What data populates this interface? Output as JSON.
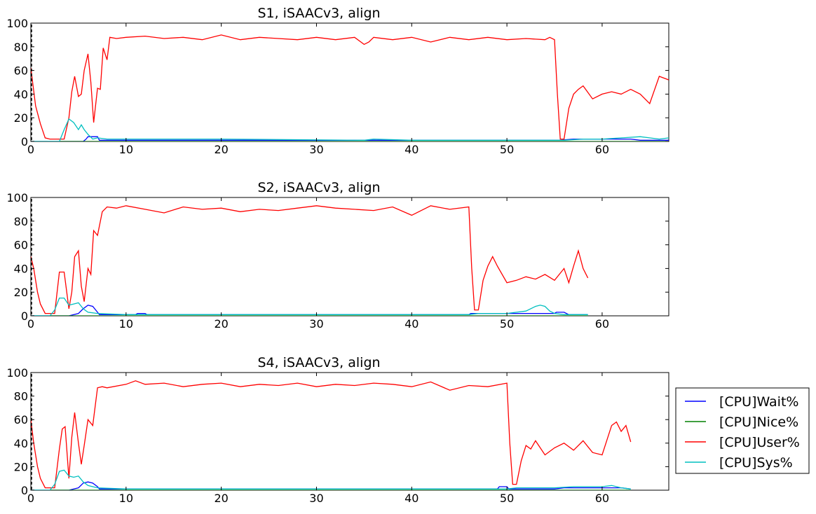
{
  "chart_data": [
    {
      "type": "line",
      "title": "S1, iSAACv3, align",
      "xlim": [
        0,
        67
      ],
      "ylim": [
        0,
        100
      ],
      "xticks": [
        "0",
        "10",
        "20",
        "30",
        "40",
        "50",
        "60"
      ],
      "yticks": [
        "0",
        "20",
        "40",
        "60",
        "80",
        "100"
      ],
      "series": [
        {
          "name": "[CPU]Wait%",
          "color": "#0000ff",
          "x": [
            0,
            4,
            5.5,
            5.8,
            6,
            7,
            7.2,
            35,
            35.2,
            36,
            36.5,
            55,
            55.5,
            57,
            58,
            60,
            62,
            63,
            64,
            65,
            66,
            67
          ],
          "y": [
            0,
            0,
            0,
            2,
            4,
            4,
            1,
            1,
            1,
            1,
            1,
            1,
            1,
            2,
            2,
            2,
            2,
            2,
            1,
            1,
            1,
            1
          ]
        },
        {
          "name": "[CPU]Nice%",
          "color": "#008000",
          "x": [
            0,
            67
          ],
          "y": [
            0,
            0
          ]
        },
        {
          "name": "[CPU]User%",
          "color": "#ff0000",
          "x": [
            0,
            0.5,
            1,
            1.5,
            2,
            2.5,
            3,
            3.5,
            4,
            4.3,
            4.6,
            5,
            5.3,
            5.6,
            6,
            6.3,
            6.6,
            7,
            7.3,
            7.6,
            8,
            8.3,
            9,
            10,
            12,
            14,
            16,
            18,
            20,
            22,
            24,
            26,
            28,
            30,
            32,
            34,
            35,
            35.5,
            36,
            38,
            40,
            42,
            44,
            46,
            48,
            50,
            52,
            54,
            54.5,
            55,
            55.3,
            55.6,
            56,
            56.5,
            57,
            57.5,
            58,
            59,
            60,
            61,
            62,
            63,
            64,
            65,
            66,
            67
          ],
          "y": [
            62,
            30,
            15,
            3,
            2,
            2,
            2,
            2,
            20,
            42,
            55,
            38,
            40,
            60,
            74,
            50,
            16,
            45,
            44,
            79,
            69,
            88,
            87,
            88,
            89,
            87,
            88,
            86,
            90,
            86,
            88,
            87,
            86,
            88,
            86,
            88,
            82,
            84,
            88,
            86,
            88,
            84,
            88,
            86,
            88,
            86,
            87,
            86,
            88,
            86,
            40,
            2,
            2,
            28,
            40,
            44,
            47,
            36,
            40,
            42,
            40,
            44,
            40,
            32,
            55,
            52
          ]
        },
        {
          "name": "[CPU]Sys%",
          "color": "#00bfbf",
          "x": [
            0,
            3,
            3.5,
            4,
            4.5,
            5,
            5.3,
            5.6,
            6,
            6.5,
            7,
            8,
            20,
            35,
            36,
            40,
            56,
            58,
            60,
            62,
            64,
            65,
            66,
            67
          ],
          "y": [
            0,
            0,
            10,
            19,
            16,
            10,
            14,
            10,
            6,
            2,
            3,
            2,
            2,
            1,
            2,
            1,
            1,
            2,
            2,
            3,
            4,
            3,
            2,
            3
          ]
        }
      ]
    },
    {
      "type": "line",
      "title": "S2, iSAACv3, align",
      "xlim": [
        0,
        67
      ],
      "ylim": [
        0,
        100
      ],
      "xticks": [
        "0",
        "10",
        "20",
        "30",
        "40",
        "50",
        "60"
      ],
      "yticks": [
        "0",
        "20",
        "40",
        "60",
        "80",
        "100"
      ],
      "series": [
        {
          "name": "[CPU]Wait%",
          "color": "#0000ff",
          "x": [
            0,
            4,
            5,
            5.5,
            6,
            6.5,
            7,
            7.2,
            11,
            11.2,
            12,
            12.2,
            46,
            46.2,
            47,
            55,
            55.2,
            56,
            56.5,
            58.5
          ],
          "y": [
            0,
            0,
            2,
            6,
            9,
            8,
            3,
            1,
            1,
            2,
            2,
            1,
            1,
            2,
            2,
            2,
            3,
            3,
            1,
            1
          ]
        },
        {
          "name": "[CPU]Nice%",
          "color": "#008000",
          "x": [
            0,
            58.5
          ],
          "y": [
            0,
            0
          ]
        },
        {
          "name": "[CPU]User%",
          "color": "#ff0000",
          "x": [
            0,
            0.3,
            0.7,
            1,
            1.5,
            2,
            2.5,
            3,
            3.5,
            4,
            4.3,
            4.6,
            5,
            5.3,
            5.6,
            6,
            6.3,
            6.6,
            7,
            7.5,
            8,
            9,
            10,
            12,
            14,
            16,
            18,
            20,
            22,
            24,
            26,
            28,
            30,
            32,
            34,
            36,
            38,
            40,
            42,
            44,
            46,
            46.3,
            46.6,
            47,
            47.5,
            48,
            48.5,
            49,
            50,
            51,
            52,
            53,
            54,
            55,
            56,
            56.5,
            57,
            57.5,
            58,
            58.5
          ],
          "y": [
            50,
            40,
            20,
            10,
            2,
            2,
            2,
            37,
            37,
            6,
            20,
            50,
            55,
            25,
            12,
            40,
            35,
            72,
            68,
            88,
            92,
            91,
            93,
            90,
            87,
            92,
            90,
            91,
            88,
            90,
            89,
            91,
            93,
            91,
            90,
            89,
            92,
            85,
            93,
            90,
            92,
            40,
            5,
            5,
            30,
            42,
            50,
            42,
            28,
            30,
            33,
            31,
            35,
            30,
            40,
            28,
            42,
            55,
            40,
            32
          ]
        },
        {
          "name": "[CPU]Sys%",
          "color": "#00bfbf",
          "x": [
            0,
            2,
            2.5,
            3,
            3.5,
            4,
            4.5,
            5,
            5.5,
            6,
            7,
            10,
            20,
            30,
            40,
            46,
            47,
            48,
            50,
            51,
            52,
            53,
            53.5,
            54,
            54.5,
            55,
            56,
            58.5
          ],
          "y": [
            0,
            0,
            5,
            15,
            15,
            9,
            10,
            11,
            6,
            3,
            2,
            1,
            1,
            1,
            1,
            1,
            2,
            2,
            2,
            3,
            4,
            8,
            9,
            8,
            4,
            2,
            1,
            1
          ]
        }
      ]
    },
    {
      "type": "line",
      "title": "S4, iSAACv3, align",
      "xlim": [
        0,
        67
      ],
      "ylim": [
        0,
        100
      ],
      "xticks": [
        "0",
        "10",
        "20",
        "30",
        "40",
        "50",
        "60"
      ],
      "yticks": [
        "0",
        "20",
        "40",
        "60",
        "80",
        "100"
      ],
      "series": [
        {
          "name": "[CPU]Wait%",
          "color": "#0000ff",
          "x": [
            0,
            4,
            5,
            5.5,
            6,
            6.5,
            7,
            7.2,
            49,
            49.2,
            50,
            50.2,
            51,
            55,
            56,
            58,
            60,
            62,
            63
          ],
          "y": [
            0,
            0,
            2,
            6,
            7,
            6,
            3,
            1,
            1,
            3,
            3,
            1,
            1,
            1,
            2,
            2,
            2,
            2,
            1
          ]
        },
        {
          "name": "[CPU]Nice%",
          "color": "#008000",
          "x": [
            0,
            63
          ],
          "y": [
            0,
            0
          ]
        },
        {
          "name": "[CPU]User%",
          "color": "#ff0000",
          "x": [
            0,
            0.3,
            0.7,
            1,
            1.5,
            2,
            2.5,
            3,
            3.3,
            3.6,
            4,
            4.3,
            4.6,
            5,
            5.3,
            5.6,
            6,
            6.5,
            7,
            7.5,
            8,
            10,
            11,
            12,
            14,
            16,
            18,
            20,
            22,
            24,
            26,
            28,
            30,
            32,
            34,
            36,
            38,
            40,
            42,
            44,
            46,
            48,
            50,
            50.3,
            50.6,
            51,
            51.5,
            52,
            52.5,
            53,
            54,
            55,
            56,
            57,
            58,
            59,
            60,
            61,
            61.5,
            62,
            62.5,
            63
          ],
          "y": [
            60,
            40,
            20,
            10,
            2,
            2,
            2,
            35,
            52,
            54,
            10,
            45,
            66,
            40,
            22,
            38,
            60,
            55,
            87,
            88,
            87,
            90,
            93,
            90,
            91,
            88,
            90,
            91,
            88,
            90,
            89,
            91,
            88,
            90,
            89,
            91,
            90,
            88,
            92,
            85,
            89,
            88,
            91,
            40,
            5,
            5,
            25,
            38,
            35,
            42,
            30,
            36,
            40,
            34,
            42,
            32,
            30,
            55,
            58,
            50,
            55,
            41
          ]
        },
        {
          "name": "[CPU]Sys%",
          "color": "#00bfbf",
          "x": [
            0,
            2,
            2.5,
            3,
            3.5,
            4,
            4.5,
            5,
            5.5,
            6,
            7,
            10,
            20,
            30,
            40,
            49,
            50,
            51,
            55,
            57,
            58,
            60,
            61,
            62,
            63
          ],
          "y": [
            0,
            0,
            5,
            16,
            17,
            12,
            11,
            12,
            7,
            4,
            2,
            1,
            1,
            1,
            1,
            1,
            1,
            2,
            2,
            3,
            3,
            3,
            4,
            2,
            1
          ]
        }
      ]
    }
  ],
  "legend": {
    "items": [
      {
        "label": "[CPU]Wait%",
        "color": "#0000ff"
      },
      {
        "label": "[CPU]Nice%",
        "color": "#008000"
      },
      {
        "label": "[CPU]User%",
        "color": "#ff0000"
      },
      {
        "label": "[CPU]Sys%",
        "color": "#00bfbf"
      }
    ]
  }
}
